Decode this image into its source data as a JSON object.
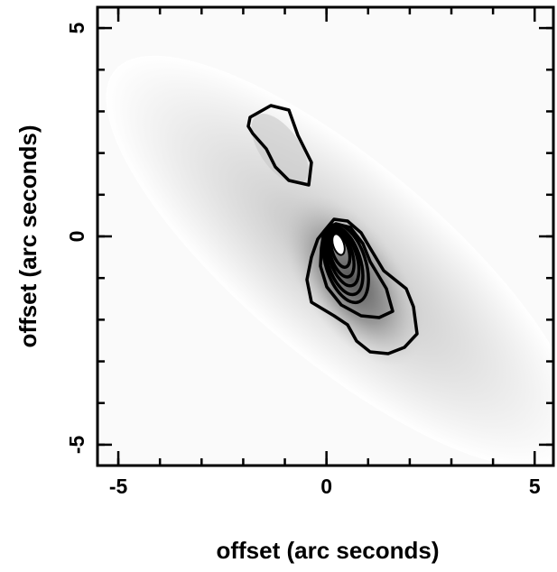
{
  "chart_data": {
    "type": "image",
    "xlabel": "offset (arc seconds)",
    "ylabel": "offset (arc seconds)",
    "xlim": [
      -5.5,
      5.45
    ],
    "ylim": [
      -5.5,
      5.5
    ],
    "xticks": [
      -5,
      0,
      5
    ],
    "yticks": [
      -5,
      0,
      5
    ],
    "xminor": [
      -5,
      -4,
      -3,
      -2,
      -1,
      0,
      1,
      2,
      3,
      4,
      5
    ],
    "yminor": [
      -5,
      -4,
      -3,
      -2,
      -1,
      0,
      1,
      2,
      3,
      4,
      5
    ]
  }
}
